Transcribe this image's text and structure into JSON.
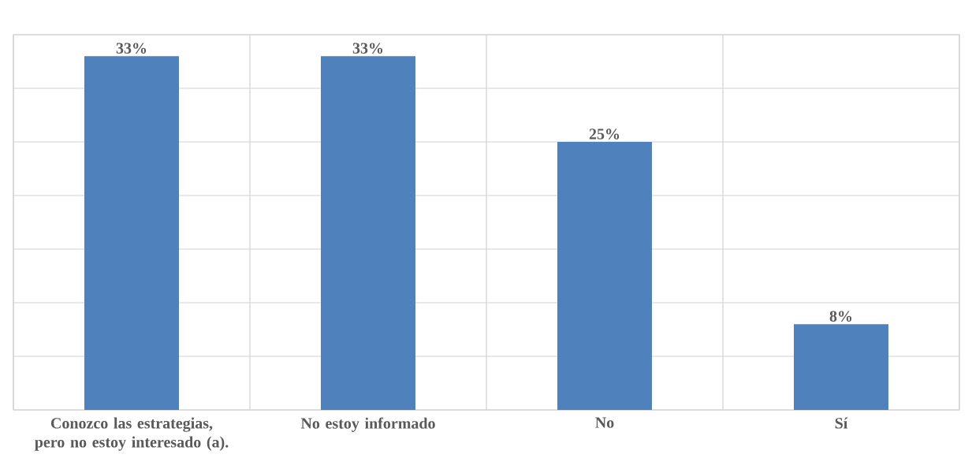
{
  "chart_data": {
    "type": "bar",
    "categories": [
      "Conozco las estrategias, pero no estoy interesado (a).",
      "No estoy informado",
      "No",
      "Sí"
    ],
    "values": [
      33,
      33,
      25,
      8
    ],
    "value_labels": [
      "33%",
      "33%",
      "25%",
      "8%"
    ],
    "color": "#4f81bd",
    "ylim": [
      0,
      35
    ],
    "yticks": [
      {
        "value": 0,
        "label": null
      },
      {
        "value": 5,
        "label": null
      },
      {
        "value": 10,
        "label": null
      },
      {
        "value": 15,
        "label": null
      },
      {
        "value": 20,
        "label": null
      },
      {
        "value": 25,
        "label": null
      },
      {
        "value": 30,
        "label": null
      },
      {
        "value": 35,
        "label": null
      }
    ],
    "grid": true,
    "tick_labels": "x"
  }
}
